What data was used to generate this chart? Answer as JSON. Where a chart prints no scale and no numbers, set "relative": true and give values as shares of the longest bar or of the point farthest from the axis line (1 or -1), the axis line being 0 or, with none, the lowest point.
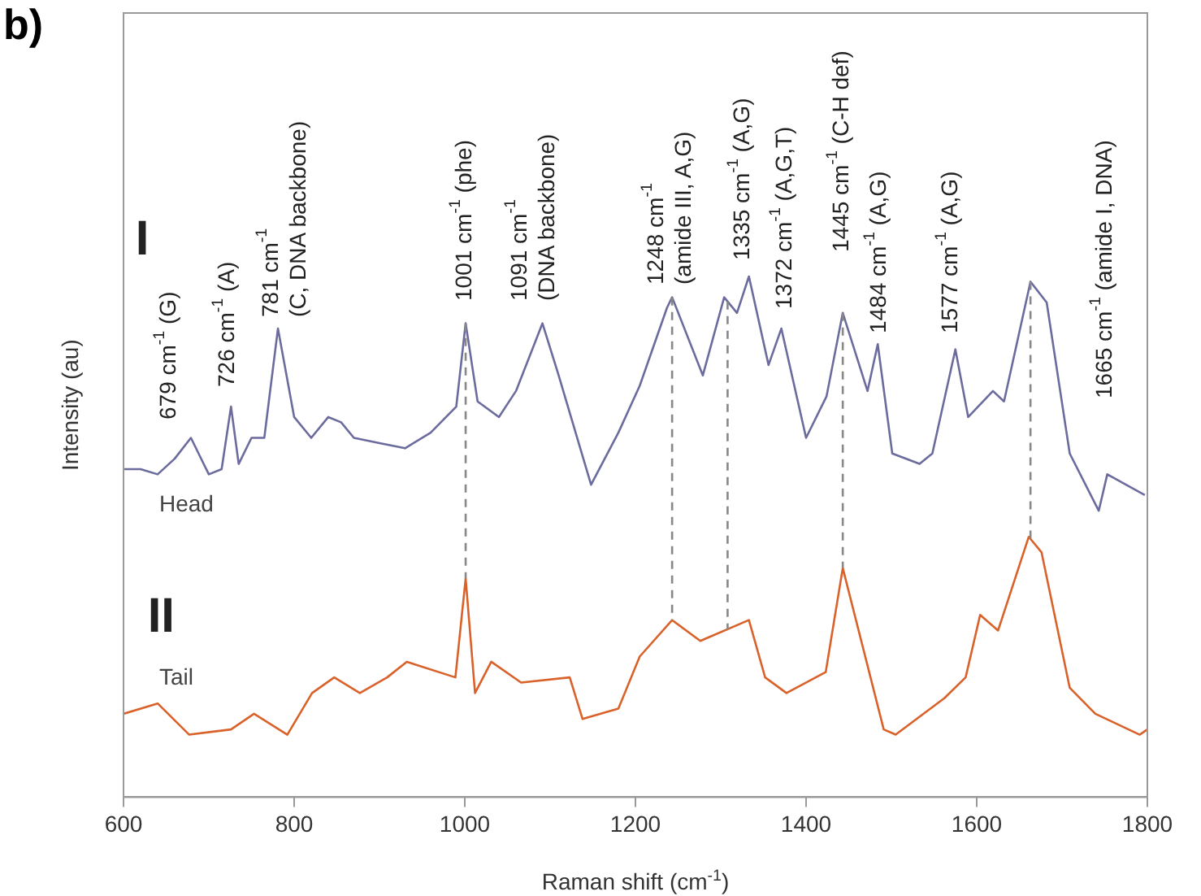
{
  "chart_data": {
    "type": "line",
    "title": "b)",
    "xlabel": "Raman shift (cm$^{-1}$)",
    "ylabel": "Intensity (au)",
    "relative": true,
    "xlim": [
      600,
      1800
    ],
    "xticks": [
      600,
      800,
      1000,
      1200,
      1400,
      1600,
      1800
    ],
    "grid": false,
    "legend": false,
    "marker": "none",
    "line_style": "solid",
    "series": [
      {
        "name": "Head",
        "color": "#6b6b9e",
        "x": [
          600,
          620,
          640,
          660,
          679,
          700,
          715,
          726,
          735,
          750,
          765,
          781,
          800,
          820,
          840,
          855,
          870,
          900,
          930,
          960,
          990,
          1001,
          1015,
          1040,
          1060,
          1091,
          1110,
          1148,
          1180,
          1205,
          1237,
          1243,
          1279,
          1304,
          1319,
          1333,
          1356,
          1371,
          1400,
          1424,
          1443,
          1472,
          1484,
          1501,
          1533,
          1548,
          1575,
          1590,
          1619,
          1632,
          1663,
          1682,
          1709,
          1743,
          1753,
          1797
        ],
        "values": [
          0.63,
          0.63,
          0.62,
          0.65,
          0.69,
          0.62,
          0.63,
          0.75,
          0.64,
          0.69,
          0.69,
          0.9,
          0.73,
          0.69,
          0.73,
          0.72,
          0.69,
          0.68,
          0.67,
          0.7,
          0.75,
          0.91,
          0.76,
          0.73,
          0.78,
          0.91,
          0.81,
          0.6,
          0.7,
          0.79,
          0.94,
          0.96,
          0.81,
          0.96,
          0.93,
          1.0,
          0.83,
          0.9,
          0.69,
          0.77,
          0.93,
          0.78,
          0.87,
          0.66,
          0.64,
          0.66,
          0.86,
          0.73,
          0.78,
          0.76,
          0.99,
          0.95,
          0.66,
          0.55,
          0.62,
          0.58
        ]
      },
      {
        "name": "Tail",
        "color": "#d9622b",
        "x": [
          600,
          640,
          677,
          726,
          753,
          792,
          821,
          847,
          877,
          909,
          932,
          989,
          1001,
          1012,
          1031,
          1066,
          1123,
          1138,
          1180,
          1205,
          1243,
          1276,
          1333,
          1352,
          1377,
          1423,
          1443,
          1491,
          1505,
          1562,
          1587,
          1604,
          1625,
          1661,
          1676,
          1709,
          1739,
          1791,
          1800
        ],
        "values": [
          0.16,
          0.18,
          0.12,
          0.13,
          0.16,
          0.12,
          0.2,
          0.23,
          0.2,
          0.23,
          0.26,
          0.23,
          0.42,
          0.2,
          0.26,
          0.22,
          0.23,
          0.15,
          0.17,
          0.27,
          0.34,
          0.3,
          0.34,
          0.23,
          0.2,
          0.24,
          0.44,
          0.13,
          0.12,
          0.19,
          0.23,
          0.35,
          0.32,
          0.5,
          0.47,
          0.21,
          0.16,
          0.12,
          0.13
        ]
      }
    ],
    "ref_lines": [
      {
        "axis": "x",
        "value": 1001,
        "color": "#888888",
        "line_style": "dashed"
      },
      {
        "axis": "x",
        "value": 1243,
        "color": "#888888",
        "line_style": "dashed"
      },
      {
        "axis": "x",
        "value": 1308,
        "color": "#888888",
        "line_style": "dashed"
      },
      {
        "axis": "x",
        "value": 1443,
        "color": "#888888",
        "line_style": "dashed"
      },
      {
        "axis": "x",
        "value": 1663,
        "color": "#888888",
        "line_style": "dashed"
      }
    ],
    "annotations": [
      "I",
      "II",
      "679 cm$^{-1}$ (G)",
      "726 cm$^{-1}$ (A)",
      "781 cm$^{-1}$\n(C, DNA backbone)",
      "1001 cm$^{-1}$ (phe)",
      "1091 cm$^{-1}$\n(DNA backbone)",
      "1248 cm$^{-1}$\n(amide III, A,G)",
      "1335 cm$^{-1}$ (A,G)",
      "1372 cm$^{-1}$ (A,G,T)",
      "1445 cm$^{-1}$ (C-H def)",
      "1484 cm$^{-1}$ (A,G)",
      "1577 cm$^{-1}$ (A,G)",
      "1665 cm$^{-1}$ (amide I, DNA)"
    ]
  }
}
